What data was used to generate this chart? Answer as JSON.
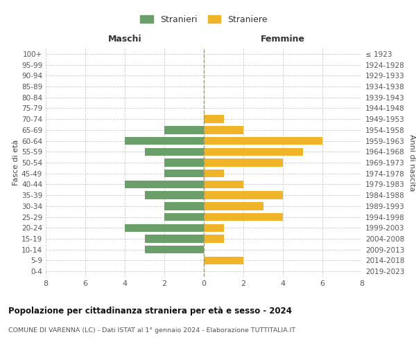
{
  "age_groups": [
    "0-4",
    "5-9",
    "10-14",
    "15-19",
    "20-24",
    "25-29",
    "30-34",
    "35-39",
    "40-44",
    "45-49",
    "50-54",
    "55-59",
    "60-64",
    "65-69",
    "70-74",
    "75-79",
    "80-84",
    "85-89",
    "90-94",
    "95-99",
    "100+"
  ],
  "birth_years": [
    "2019-2023",
    "2014-2018",
    "2009-2013",
    "2004-2008",
    "1999-2003",
    "1994-1998",
    "1989-1993",
    "1984-1988",
    "1979-1983",
    "1974-1978",
    "1969-1973",
    "1964-1968",
    "1959-1963",
    "1954-1958",
    "1949-1953",
    "1944-1948",
    "1939-1943",
    "1934-1938",
    "1929-1933",
    "1924-1928",
    "≤ 1923"
  ],
  "males": [
    0,
    0,
    3,
    3,
    4,
    2,
    2,
    3,
    4,
    2,
    2,
    3,
    4,
    2,
    0,
    0,
    0,
    0,
    0,
    0,
    0
  ],
  "females": [
    0,
    2,
    0,
    1,
    1,
    4,
    3,
    4,
    2,
    1,
    4,
    5,
    6,
    2,
    1,
    0,
    0,
    0,
    0,
    0,
    0
  ],
  "male_color": "#6a9f6a",
  "female_color": "#f0b429",
  "title": "Popolazione per cittadinanza straniera per età e sesso - 2024",
  "subtitle": "COMUNE DI VARENNA (LC) - Dati ISTAT al 1° gennaio 2024 - Elaborazione TUTTITALIA.IT",
  "xlabel_left": "Maschi",
  "xlabel_right": "Femmine",
  "ylabel_left": "Fasce di età",
  "ylabel_right": "Anni di nascita",
  "legend_male": "Stranieri",
  "legend_female": "Straniere",
  "xlim": 8,
  "background_color": "#ffffff",
  "grid_color": "#cccccc",
  "dashed_line_color": "#999977"
}
